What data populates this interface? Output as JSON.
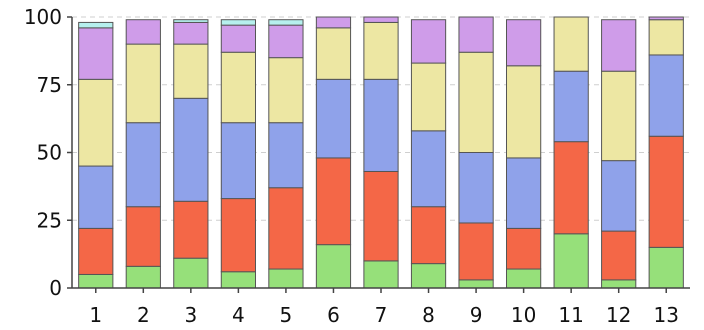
{
  "chart_data": {
    "type": "bar",
    "stacked": true,
    "title": "",
    "xlabel": "",
    "ylabel": "",
    "ylim": [
      0,
      100
    ],
    "yticks": [
      0,
      25,
      50,
      75,
      100
    ],
    "grid": true,
    "categories": [
      "1",
      "2",
      "3",
      "4",
      "5",
      "6",
      "7",
      "8",
      "9",
      "10",
      "11",
      "12",
      "13"
    ],
    "series": [
      {
        "color": "#96e07a",
        "values": [
          5,
          8,
          11,
          6,
          7,
          16,
          10,
          9,
          3,
          7,
          20,
          3,
          15
        ]
      },
      {
        "color": "#f46747",
        "values": [
          17,
          22,
          21,
          27,
          30,
          32,
          33,
          21,
          21,
          15,
          34,
          18,
          41
        ]
      },
      {
        "color": "#8fa2ea",
        "values": [
          23,
          31,
          38,
          28,
          24,
          29,
          34,
          28,
          26,
          26,
          26,
          26,
          30
        ]
      },
      {
        "color": "#ede7a3",
        "values": [
          32,
          29,
          20,
          26,
          24,
          19,
          21,
          25,
          37,
          34,
          20,
          33,
          13
        ]
      },
      {
        "color": "#cf9ce9",
        "values": [
          19,
          9,
          8,
          10,
          12,
          4,
          2,
          16,
          13,
          17,
          0,
          19,
          1
        ]
      },
      {
        "color": "#b6f0ee",
        "values": [
          2,
          0,
          1,
          2,
          2,
          0,
          0,
          0,
          0,
          0,
          0,
          0,
          0
        ]
      }
    ]
  }
}
